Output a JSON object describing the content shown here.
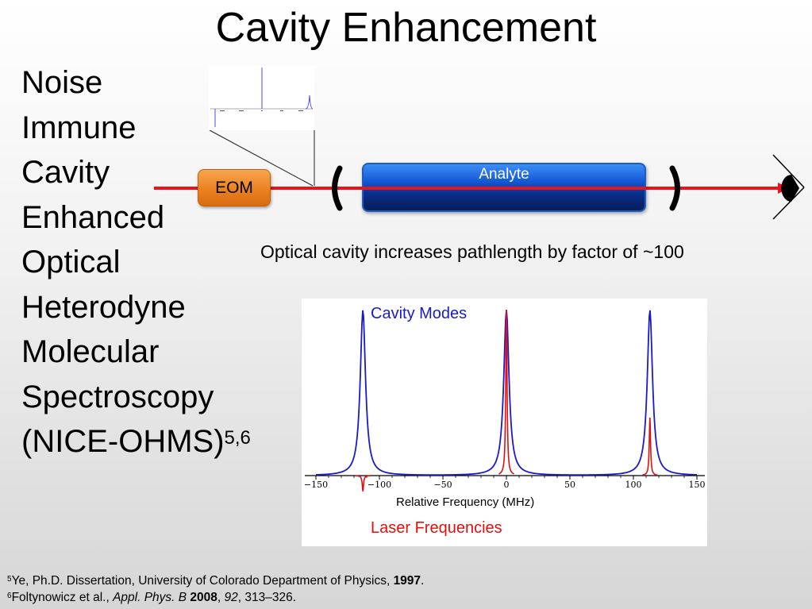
{
  "title": "Cavity Enhancement",
  "acronym": {
    "lines": [
      "Noise",
      "Immune",
      "Cavity",
      "Enhanced",
      "Optical",
      "Heterodyne",
      "Molecular",
      "Spectroscopy",
      "(NICE-OHMS)"
    ],
    "superscript": "5,6"
  },
  "diagram": {
    "eom_label": "EOM",
    "analyte_label": "Analyte",
    "colors": {
      "beam": "#e8141c",
      "eom": "#ec8220",
      "analyte": "#1357d6"
    }
  },
  "caption": "Optical cavity increases pathlength by factor of ~100",
  "chart_data": {
    "type": "line",
    "xlabel": "Relative Frequency (MHz)",
    "xlim": [
      -150,
      150
    ],
    "xticks": [
      -150,
      -100,
      -50,
      0,
      50,
      100,
      150
    ],
    "series": [
      {
        "name": "Cavity Modes",
        "color": "#1a1acc",
        "shape": "lorentzian",
        "centers": [
          -113,
          0,
          113
        ],
        "peak_height": 1.0,
        "half_width": 2.5
      },
      {
        "name": "Laser Frequencies",
        "color": "#e01010",
        "shape": "narrow",
        "centers": [
          -113,
          0,
          113
        ],
        "heights": [
          -0.33,
          1.0,
          0.35
        ],
        "half_width": 0.6
      }
    ]
  },
  "references": [
    {
      "num": "5",
      "text_before": "Ye, Ph.D. Dissertation, University of Colorado Department of Physics, ",
      "bold": "1997",
      "text_after": "."
    },
    {
      "num": "6",
      "text_before": "Foltynowicz et al., ",
      "italic_journal": "Appl. Phys. B",
      "bold": "2008",
      "sep": ", ",
      "italic_volume": "92",
      "text_after": ", 313–326."
    }
  ]
}
